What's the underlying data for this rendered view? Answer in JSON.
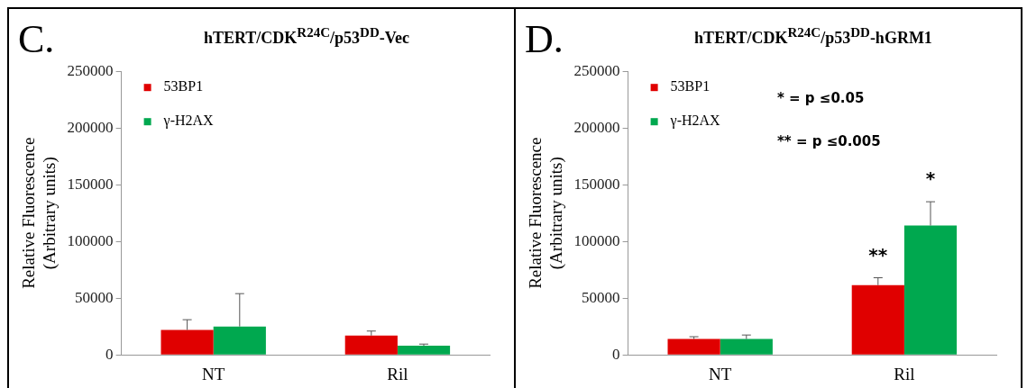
{
  "chart_data": [
    {
      "type": "bar",
      "title": "hTERT/CDK$^{R24C}$/p53$^{DD}$-Vec",
      "ylabel": "Relative Fluorescence (Arbitrary units)",
      "categories": [
        "NT",
        "Ril"
      ],
      "series": [
        {
          "name": "53BP1",
          "color": "#e00000",
          "values": [
            22000,
            17000
          ],
          "errors": [
            9000,
            4000
          ]
        },
        {
          "name": "γ-H2AX",
          "color": "#00a84f",
          "values": [
            25000,
            8000
          ],
          "errors": [
            29000,
            1500
          ]
        }
      ],
      "ylim": [
        0,
        250000
      ],
      "yticks": [
        0,
        50000,
        100000,
        150000,
        200000,
        250000
      ],
      "grid": false,
      "legend": "top left",
      "annotations": [
        "C."
      ]
    },
    {
      "type": "bar",
      "title": "hTERT/CDK$^{R24C}$/p53$^{DD}$-hGRM1",
      "ylabel": "Relative Fluorescence (Arbitrary units)",
      "categories": [
        "NT",
        "Ril"
      ],
      "series": [
        {
          "name": "53BP1",
          "color": "#e00000",
          "values": [
            14000,
            61500
          ],
          "errors": [
            2000,
            6500
          ]
        },
        {
          "name": "γ-H2AX",
          "color": "#00a84f",
          "values": [
            14000,
            114000
          ],
          "errors": [
            3500,
            21000
          ]
        }
      ],
      "ylim": [
        0,
        250000
      ],
      "yticks": [
        0,
        50000,
        100000,
        150000,
        200000,
        250000
      ],
      "grid": false,
      "legend": "top left",
      "annotations": [
        "D.",
        "* = p ≤0.05",
        "** = p ≤0.005",
        {
          "text": "**",
          "x": "Ril",
          "y": 61500
        },
        {
          "text": "*",
          "x": "Ril",
          "y": 114000
        }
      ]
    }
  ]
}
